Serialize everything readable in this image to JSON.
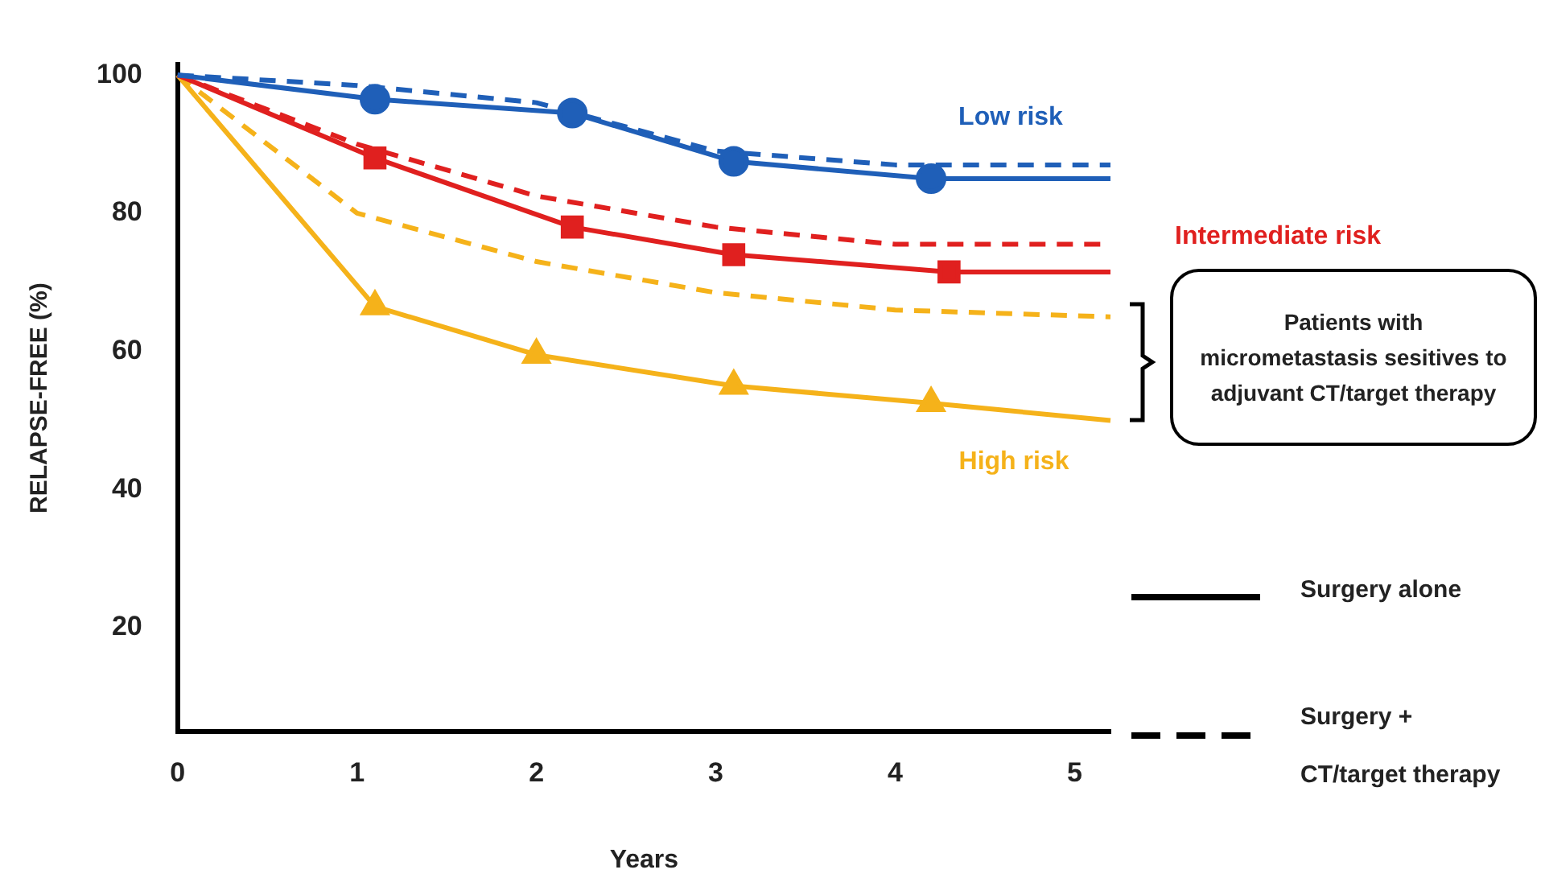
{
  "chart_data": {
    "type": "line",
    "xlabel": "Years",
    "ylabel": "RELAPSE-FREE (%)",
    "xlim": [
      0,
      5.2
    ],
    "xticks": [
      0,
      1,
      2,
      3,
      4,
      5
    ],
    "ylim": [
      5,
      101.5
    ],
    "yticks": [
      20,
      40,
      60,
      80,
      100
    ],
    "grid": false,
    "legend": false,
    "series": [
      {
        "name": "Low risk",
        "color": "#1f5fb8",
        "marker": "circle",
        "line_style": "solid",
        "x": [
          0,
          1.1,
          2.2,
          3.1,
          4.2,
          5.2
        ],
        "values": [
          100,
          96.5,
          94.5,
          87.5,
          85,
          85
        ]
      },
      {
        "color": "#1f5fb8",
        "marker": "none",
        "line_style": "dashed",
        "x": [
          0,
          1,
          2,
          3,
          4,
          5.2
        ],
        "values": [
          100,
          98.5,
          96,
          89,
          87,
          87
        ]
      },
      {
        "name": "Intermediate risk",
        "color": "#e0201f",
        "marker": "square",
        "line_style": "solid",
        "x": [
          0,
          1.1,
          2.2,
          3.1,
          4.3,
          5.2
        ],
        "values": [
          100,
          88,
          78,
          74,
          71.5,
          71.5
        ]
      },
      {
        "color": "#e0201f",
        "marker": "none",
        "line_style": "dashed",
        "x": [
          0,
          1,
          2,
          3,
          4,
          5.2
        ],
        "values": [
          100,
          90,
          82.5,
          78,
          75.5,
          75.5
        ]
      },
      {
        "name": "High risk",
        "color": "#f5b21a",
        "marker": "triangle",
        "line_style": "solid",
        "x": [
          0,
          1.1,
          2,
          3.1,
          4.2,
          5.2
        ],
        "values": [
          100,
          66.5,
          59.5,
          55,
          52.5,
          50
        ]
      },
      {
        "color": "#f5b21a",
        "marker": "none",
        "line_style": "dashed",
        "x": [
          0,
          1,
          2,
          3,
          4,
          5.2
        ],
        "values": [
          100,
          80,
          73,
          68.5,
          66,
          65
        ]
      }
    ],
    "annotations": [
      "Patients with micrometastasis sesitives to adjuvant CT/target therapy",
      "Surgery alone",
      "Surgery + CT/target therapy"
    ]
  }
}
